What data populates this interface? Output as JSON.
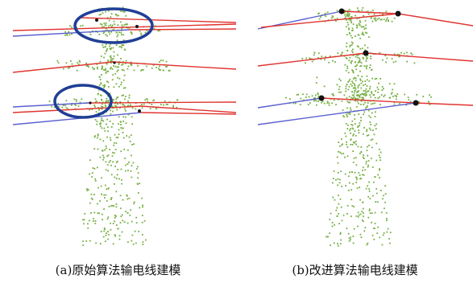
{
  "figure": {
    "panels": [
      {
        "id": "a",
        "caption": "(a)原始算法输电线建模",
        "highlighted_regions": 2
      },
      {
        "id": "b",
        "caption": "(b)改进算法输电线建模",
        "highlighted_regions": 0
      }
    ],
    "colors": {
      "point_cloud": "#76b043",
      "fitted_line": "#e0342f",
      "ground_wire": "#5b5fd0",
      "highlight_ellipse": "#1f3e96",
      "node_marker": "#111111"
    }
  }
}
